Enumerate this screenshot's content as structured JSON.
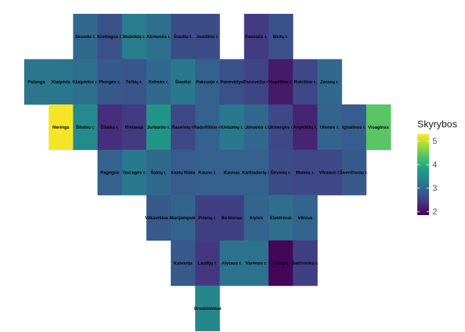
{
  "chart_data": {
    "type": "heatmap",
    "legend": {
      "title": "Skyrybos",
      "ticks": [
        5,
        4,
        3,
        2
      ],
      "domain": [
        1.85,
        5.3
      ],
      "placement": "right"
    },
    "colors": {
      "scale": [
        "#440154",
        "#46327e",
        "#365c8d",
        "#277f8e",
        "#1fa187",
        "#4ac16d",
        "#a0da39",
        "#fde725"
      ]
    },
    "tiles": [
      {
        "label": "Skuodo r.",
        "col": 2,
        "row": 0,
        "value": 3.0
      },
      {
        "label": "Kretingos r.",
        "col": 3,
        "row": 0,
        "value": 2.7
      },
      {
        "label": "Mažeikių r.",
        "col": 4,
        "row": 0,
        "value": 3.3
      },
      {
        "label": "Akmenės r.",
        "col": 5,
        "row": 0,
        "value": 3.1
      },
      {
        "label": "Šiaulių r.",
        "col": 6,
        "row": 0,
        "value": 2.65
      },
      {
        "label": "Joniškio r.",
        "col": 7,
        "row": 0,
        "value": 2.65
      },
      {
        "label": "Pasvalio r.",
        "col": 9,
        "row": 0,
        "value": 2.45
      },
      {
        "label": "Biržų r.",
        "col": 10,
        "row": 0,
        "value": 2.7
      },
      {
        "label": "Palanga",
        "col": 0,
        "row": 1,
        "value": 3.2
      },
      {
        "label": "Klaipėda",
        "col": 1,
        "row": 1,
        "value": 3.2
      },
      {
        "label": "Klaipėdos r.",
        "col": 2,
        "row": 1,
        "value": 3.1
      },
      {
        "label": "Plungės r.",
        "col": 3,
        "row": 1,
        "value": 2.8
      },
      {
        "label": "Telšių r.",
        "col": 4,
        "row": 1,
        "value": 2.75
      },
      {
        "label": "Kelmės r.",
        "col": 5,
        "row": 1,
        "value": 3.0
      },
      {
        "label": "Šiauliai",
        "col": 6,
        "row": 1,
        "value": 3.25
      },
      {
        "label": "Pakruojo r.",
        "col": 7,
        "row": 1,
        "value": 2.9
      },
      {
        "label": "Panevėžys",
        "col": 8,
        "row": 1,
        "value": 2.7
      },
      {
        "label": "Panevėžio r.",
        "col": 9,
        "row": 1,
        "value": 2.55
      },
      {
        "label": "Kupiškio r.",
        "col": 10,
        "row": 1,
        "value": 2.1
      },
      {
        "label": "Rokiškio r.",
        "col": 11,
        "row": 1,
        "value": 2.6
      },
      {
        "label": "Zarasų r.",
        "col": 12,
        "row": 1,
        "value": 3.0
      },
      {
        "label": "Neringa",
        "col": 1,
        "row": 2,
        "value": 5.25
      },
      {
        "label": "Šilutės r.",
        "col": 2,
        "row": 2,
        "value": 3.5
      },
      {
        "label": "Šilalės r.",
        "col": 3,
        "row": 2,
        "value": 2.3
      },
      {
        "label": "Rietavas",
        "col": 4,
        "row": 2,
        "value": 2.45
      },
      {
        "label": "Jurbarko r.",
        "col": 5,
        "row": 2,
        "value": 3.65
      },
      {
        "label": "Raseinių r.",
        "col": 6,
        "row": 2,
        "value": 2.6
      },
      {
        "label": "Radviliškio r.",
        "col": 7,
        "row": 2,
        "value": 2.9
      },
      {
        "label": "Kėdainių r.",
        "col": 8,
        "row": 2,
        "value": 3.25
      },
      {
        "label": "Jonavos r.",
        "col": 9,
        "row": 2,
        "value": 3.0
      },
      {
        "label": "Ukmergės r.",
        "col": 10,
        "row": 2,
        "value": 2.6
      },
      {
        "label": "Anykščių r.",
        "col": 11,
        "row": 2,
        "value": 2.2
      },
      {
        "label": "Utenos r.",
        "col": 12,
        "row": 2,
        "value": 2.95
      },
      {
        "label": "Ignalinos r.",
        "col": 13,
        "row": 2,
        "value": 2.85
      },
      {
        "label": "Visaginas",
        "col": 14,
        "row": 2,
        "value": 4.4
      },
      {
        "label": "Pagėgiai",
        "col": 3,
        "row": 3,
        "value": 2.9
      },
      {
        "label": "Tauragės r.",
        "col": 4,
        "row": 3,
        "value": 3.25
      },
      {
        "label": "Šakių r.",
        "col": 5,
        "row": 3,
        "value": 3.0
      },
      {
        "label": "Kazlų Rūda",
        "col": 6,
        "row": 3,
        "value": 2.85
      },
      {
        "label": "Kauno r.",
        "col": 7,
        "row": 3,
        "value": 2.9
      },
      {
        "label": "Kaunas",
        "col": 8,
        "row": 3,
        "value": 2.9
      },
      {
        "label": "Kaišiadorių r.",
        "col": 9,
        "row": 3,
        "value": 2.9
      },
      {
        "label": "Širvintų r.",
        "col": 10,
        "row": 3,
        "value": 2.65
      },
      {
        "label": "Molėtų r.",
        "col": 11,
        "row": 3,
        "value": 2.6
      },
      {
        "label": "Vilniaus r.",
        "col": 12,
        "row": 3,
        "value": 2.6
      },
      {
        "label": "Švenčionių r.",
        "col": 13,
        "row": 3,
        "value": 2.8
      },
      {
        "label": "Vilkaviškio r.",
        "col": 5,
        "row": 4,
        "value": 2.8
      },
      {
        "label": "Marijampolė",
        "col": 6,
        "row": 4,
        "value": 2.95
      },
      {
        "label": "Prienų r.",
        "col": 7,
        "row": 4,
        "value": 2.5
      },
      {
        "label": "Birštonas",
        "col": 8,
        "row": 4,
        "value": 2.5
      },
      {
        "label": "Alytus",
        "col": 9,
        "row": 4,
        "value": 2.95
      },
      {
        "label": "Elektrėnai",
        "col": 10,
        "row": 4,
        "value": 3.1
      },
      {
        "label": "Vilnius",
        "col": 11,
        "row": 4,
        "value": 2.95
      },
      {
        "label": "Kalvarija",
        "col": 6,
        "row": 5,
        "value": 2.8
      },
      {
        "label": "Lazdijų r.",
        "col": 7,
        "row": 5,
        "value": 2.4
      },
      {
        "label": "Alytaus r.",
        "col": 8,
        "row": 5,
        "value": 3.15
      },
      {
        "label": "Varėnos r.",
        "col": 9,
        "row": 5,
        "value": 3.15
      },
      {
        "label": "Trakų r.",
        "col": 10,
        "row": 5,
        "value": 1.9
      },
      {
        "label": "Šalčininkų r.",
        "col": 11,
        "row": 5,
        "value": 2.5
      },
      {
        "label": "Druskininkai",
        "col": 7,
        "row": 6,
        "value": 3.45
      }
    ]
  }
}
